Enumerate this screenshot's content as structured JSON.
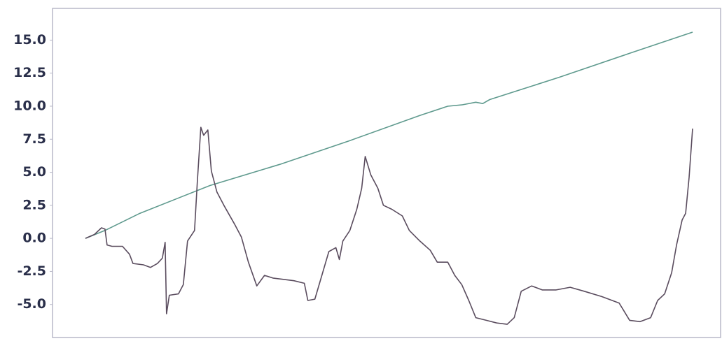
{
  "chart_data": {
    "type": "line",
    "xlim": [
      -47,
      908
    ],
    "ylim": [
      -7.5,
      17.4
    ],
    "yticks": [
      {
        "value": 15,
        "label": "15.0"
      },
      12.5,
      {
        "value": 10,
        "label": "10.0"
      },
      7.5,
      {
        "value": 5,
        "label": "5.0"
      },
      2.5,
      {
        "value": 0,
        "label": "0.0"
      },
      -2.5,
      {
        "value": -5,
        "label": "-5.0"
      }
    ],
    "grid": false,
    "series": [
      {
        "color": "#5f9a8e",
        "x": [
          0,
          28,
          78,
          178,
          278,
          378,
          478,
          518,
          538,
          558,
          568,
          578,
          678,
          778,
          868
        ],
        "values": [
          0,
          0.6,
          1.9,
          4.0,
          5.6,
          7.4,
          9.3,
          10.0,
          10.1,
          10.3,
          10.2,
          10.5,
          12.2,
          14.0,
          15.6
        ]
      },
      {
        "color": "#5a4c5e",
        "x": [
          0,
          13,
          23,
          28,
          31,
          38,
          53,
          63,
          68,
          83,
          93,
          103,
          110,
          114,
          116,
          120,
          133,
          140,
          146,
          156,
          160,
          165,
          169,
          175,
          180,
          188,
          198,
          213,
          223,
          233,
          245,
          256,
          268,
          283,
          298,
          313,
          318,
          328,
          338,
          348,
          358,
          363,
          368,
          378,
          388,
          395,
          400,
          408,
          418,
          426,
          438,
          453,
          463,
          478,
          493,
          503,
          518,
          528,
          538,
          548,
          558,
          573,
          588,
          603,
          613,
          623,
          638,
          653,
          673,
          693,
          713,
          738,
          763,
          778,
          793,
          808,
          818,
          828,
          838,
          845,
          853,
          858,
          863,
          868
        ],
        "values": [
          0,
          0.3,
          0.8,
          0.7,
          -0.5,
          -0.6,
          -0.6,
          -1.2,
          -1.9,
          -2.0,
          -2.2,
          -1.9,
          -1.5,
          -0.3,
          -5.7,
          -4.3,
          -4.2,
          -3.5,
          -0.2,
          0.6,
          4.3,
          8.4,
          7.8,
          8.2,
          5.1,
          3.5,
          2.5,
          1.1,
          0.1,
          -1.8,
          -3.6,
          -2.8,
          -3.0,
          -3.1,
          -3.2,
          -3.4,
          -4.7,
          -4.6,
          -2.8,
          -1.0,
          -0.7,
          -1.6,
          -0.2,
          0.6,
          2.2,
          3.8,
          6.2,
          4.8,
          3.8,
          2.5,
          2.2,
          1.7,
          0.6,
          -0.2,
          -0.9,
          -1.8,
          -1.8,
          -2.8,
          -3.5,
          -4.7,
          -6.0,
          -6.2,
          -6.4,
          -6.5,
          -6.0,
          -4.0,
          -3.6,
          -3.9,
          -3.9,
          -3.7,
          -4.0,
          -4.4,
          -4.9,
          -6.2,
          -6.3,
          -6.0,
          -4.7,
          -4.2,
          -2.6,
          -0.5,
          1.4,
          1.9,
          4.6,
          8.3
        ]
      }
    ]
  }
}
